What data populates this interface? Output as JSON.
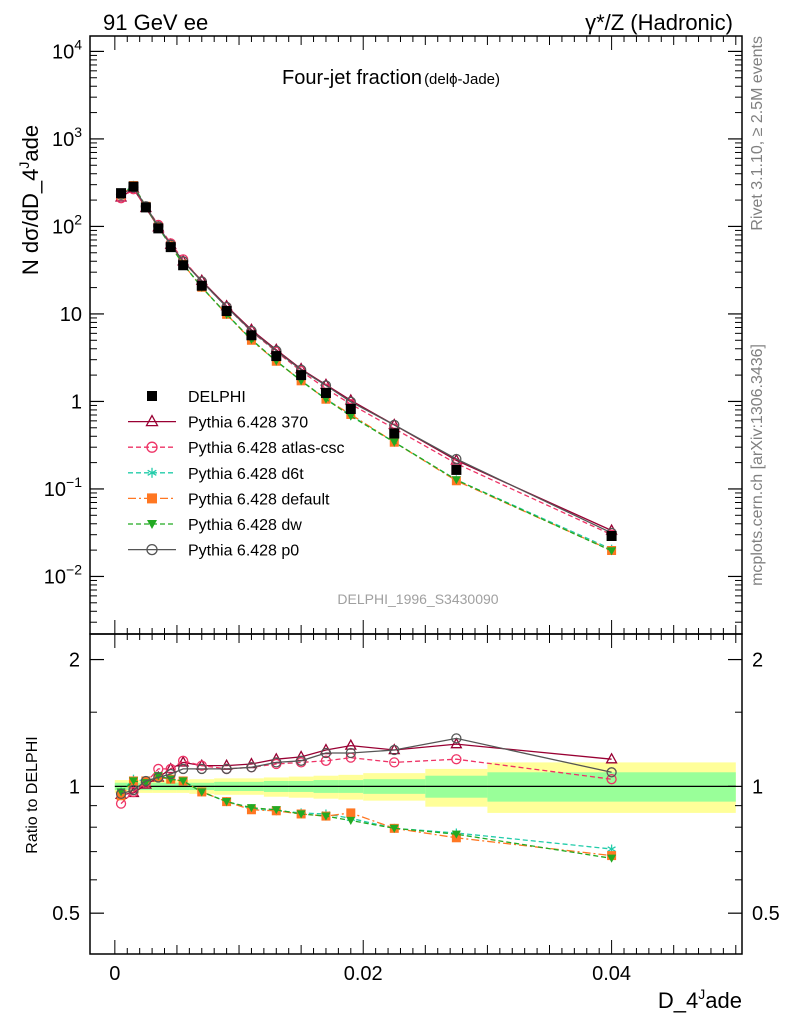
{
  "header": {
    "left": "91 GeV ee",
    "right": "γ*/Z (Hadronic)"
  },
  "side": {
    "version": "Rivet 3.1.10, ≥ 2.5M events",
    "source": "mcplots.cern.ch [arXiv:1306.3436]"
  },
  "chart_data": [
    {
      "type": "scatter",
      "title": "Four-jet fraction",
      "subtitle": "(delϕ-Jade)",
      "watermark": "DELPHI_1996_S3430090",
      "ylabel_main": "N dσ/dD_4",
      "ylabel_sup": "J",
      "ylabel_tail": "ade",
      "xlabel_main": "D_4",
      "xlabel_sup": "J",
      "xlabel_tail": "ade",
      "xlim": [
        -0.002,
        0.0505
      ],
      "ylim": [
        0.0022,
        15000
      ],
      "yscale": "log",
      "y_ticks": [
        {
          "v": 0.01,
          "base": "10",
          "exp": "−2"
        },
        {
          "v": 0.1,
          "base": "10",
          "exp": "−1"
        },
        {
          "v": 1,
          "base": "1",
          "exp": ""
        },
        {
          "v": 10,
          "base": "10",
          "exp": ""
        },
        {
          "v": 100,
          "base": "10",
          "exp": "2"
        },
        {
          "v": 1000,
          "base": "10",
          "exp": "3"
        },
        {
          "v": 10000,
          "base": "10",
          "exp": "4"
        }
      ],
      "legend_position": "left-middle",
      "data": {
        "name": "DELPHI",
        "color": "#000000",
        "x": [
          0.0005,
          0.0015,
          0.0025,
          0.0035,
          0.0045,
          0.0055,
          0.007,
          0.009,
          0.011,
          0.013,
          0.015,
          0.017,
          0.019,
          0.0225,
          0.0275,
          0.04
        ],
        "y": [
          240,
          285,
          165,
          95,
          58,
          36,
          21,
          10.8,
          5.7,
          3.3,
          2.0,
          1.25,
          0.82,
          0.43,
          0.165,
          0.029
        ]
      },
      "series": [
        {
          "name": "Pythia 6.428 370",
          "color": "#990033",
          "marker": "open-triangle",
          "dash": "",
          "y": [
            215,
            270,
            163,
            98,
            62,
            40,
            24,
            12.3,
            6.6,
            3.9,
            2.35,
            1.55,
            1.03,
            0.54,
            0.212,
            0.0335
          ]
        },
        {
          "name": "Pythia 6.428 atlas-csc",
          "color": "#ee3366",
          "marker": "open-circle",
          "dash": "5,3",
          "y": [
            210,
            266,
            168,
            104,
            64,
            42,
            23.5,
            12.0,
            6.3,
            3.7,
            2.22,
            1.4,
            0.93,
            0.49,
            0.195,
            0.03
          ]
        },
        {
          "name": "Pythia 6.428 d6t",
          "color": "#22ccaa",
          "marker": "asterisk",
          "dash": "5,3",
          "y": [
            232,
            295,
            170,
            98,
            60,
            37,
            20.2,
            9.9,
            5.08,
            2.88,
            1.73,
            1.07,
            0.69,
            0.342,
            0.127,
            0.0205
          ]
        },
        {
          "name": "Pythia 6.428 default",
          "color": "#ff7722",
          "marker": "filled-square",
          "dash": "8,3,2,3",
          "y": [
            228,
            293,
            170,
            98,
            60,
            37,
            20.2,
            9.9,
            5.0,
            2.88,
            1.72,
            1.06,
            0.71,
            0.342,
            0.124,
            0.0198
          ]
        },
        {
          "name": "Pythia 6.428 dw",
          "color": "#22aa22",
          "marker": "filled-triangle-down",
          "dash": "5,3",
          "y": [
            232,
            293,
            168,
            97,
            60,
            37,
            20.2,
            9.9,
            5.1,
            2.9,
            1.72,
            1.06,
            0.68,
            0.342,
            0.127,
            0.0196
          ]
        },
        {
          "name": "Pythia 6.428 p0",
          "color": "#555555",
          "marker": "open-circle",
          "dash": "",
          "y": [
            230,
            280,
            170,
            100,
            62,
            40,
            23.5,
            12.0,
            6.4,
            3.8,
            2.3,
            1.52,
            0.99,
            0.54,
            0.22,
            0.0315
          ]
        }
      ]
    },
    {
      "type": "scatter",
      "ylabel": "Ratio to DELPHI",
      "yscale": "log",
      "xlim": [
        -0.002,
        0.0505
      ],
      "ylim": [
        0.4,
        2.3
      ],
      "y_ticks": [
        {
          "v": 0.5,
          "label": "0.5"
        },
        {
          "v": 1,
          "label": "1"
        },
        {
          "v": 2,
          "label": "2"
        }
      ],
      "x_ticks": [
        {
          "v": 0,
          "label": "0"
        },
        {
          "v": 0.02,
          "label": "0.02"
        },
        {
          "v": 0.04,
          "label": "0.04"
        }
      ],
      "bands": [
        {
          "x0": 0.0,
          "x1": 0.001,
          "y2lo": 0.965,
          "y2hi": 1.035,
          "y1lo": 0.98,
          "y1hi": 1.02
        },
        {
          "x0": 0.001,
          "x1": 0.002,
          "y2lo": 0.965,
          "y2hi": 1.035,
          "y1lo": 0.98,
          "y1hi": 1.02
        },
        {
          "x0": 0.002,
          "x1": 0.003,
          "y2lo": 0.965,
          "y2hi": 1.035,
          "y1lo": 0.98,
          "y1hi": 1.02
        },
        {
          "x0": 0.003,
          "x1": 0.004,
          "y2lo": 0.965,
          "y2hi": 1.035,
          "y1lo": 0.98,
          "y1hi": 1.02
        },
        {
          "x0": 0.004,
          "x1": 0.005,
          "y2lo": 0.965,
          "y2hi": 1.035,
          "y1lo": 0.98,
          "y1hi": 1.02
        },
        {
          "x0": 0.005,
          "x1": 0.006,
          "y2lo": 0.965,
          "y2hi": 1.035,
          "y1lo": 0.98,
          "y1hi": 1.02
        },
        {
          "x0": 0.006,
          "x1": 0.008,
          "y2lo": 0.96,
          "y2hi": 1.04,
          "y1lo": 0.98,
          "y1hi": 1.02
        },
        {
          "x0": 0.008,
          "x1": 0.01,
          "y2lo": 0.955,
          "y2hi": 1.045,
          "y1lo": 0.975,
          "y1hi": 1.025
        },
        {
          "x0": 0.01,
          "x1": 0.012,
          "y2lo": 0.955,
          "y2hi": 1.045,
          "y1lo": 0.975,
          "y1hi": 1.025
        },
        {
          "x0": 0.012,
          "x1": 0.014,
          "y2lo": 0.945,
          "y2hi": 1.05,
          "y1lo": 0.97,
          "y1hi": 1.03
        },
        {
          "x0": 0.014,
          "x1": 0.016,
          "y2lo": 0.94,
          "y2hi": 1.055,
          "y1lo": 0.97,
          "y1hi": 1.03
        },
        {
          "x0": 0.016,
          "x1": 0.018,
          "y2lo": 0.935,
          "y2hi": 1.06,
          "y1lo": 0.965,
          "y1hi": 1.035
        },
        {
          "x0": 0.018,
          "x1": 0.02,
          "y2lo": 0.93,
          "y2hi": 1.065,
          "y1lo": 0.965,
          "y1hi": 1.035
        },
        {
          "x0": 0.02,
          "x1": 0.025,
          "y2lo": 0.925,
          "y2hi": 1.075,
          "y1lo": 0.96,
          "y1hi": 1.04
        },
        {
          "x0": 0.025,
          "x1": 0.03,
          "y2lo": 0.895,
          "y2hi": 1.1,
          "y1lo": 0.94,
          "y1hi": 1.06
        },
        {
          "x0": 0.03,
          "x1": 0.05,
          "y2lo": 0.865,
          "y2hi": 1.14,
          "y1lo": 0.92,
          "y1hi": 1.08
        }
      ],
      "series": [
        {
          "name": "Pythia 6.428 370",
          "y": [
            0.955,
            0.965,
            1.01,
            1.05,
            1.1,
            1.14,
            1.12,
            1.12,
            1.13,
            1.16,
            1.175,
            1.22,
            1.25,
            1.22,
            1.26,
            1.16
          ]
        },
        {
          "name": "Pythia 6.428 atlas-csc",
          "y": [
            0.91,
            0.97,
            1.02,
            1.1,
            1.1,
            1.15,
            1.12,
            1.1,
            1.11,
            1.13,
            1.14,
            1.15,
            1.17,
            1.14,
            1.16,
            1.04
          ]
        },
        {
          "name": "Pythia 6.428 d6t",
          "y": [
            0.97,
            1.04,
            1.03,
            1.05,
            1.04,
            1.03,
            0.97,
            0.92,
            0.885,
            0.875,
            0.865,
            0.86,
            0.84,
            0.795,
            0.775,
            0.71
          ]
        },
        {
          "name": "Pythia 6.428 default",
          "y": [
            0.95,
            1.03,
            1.03,
            1.05,
            1.04,
            1.03,
            0.97,
            0.92,
            0.88,
            0.875,
            0.86,
            0.85,
            0.865,
            0.795,
            0.755,
            0.685
          ]
        },
        {
          "name": "Pythia 6.428 dw",
          "y": [
            0.97,
            1.03,
            1.02,
            1.06,
            1.04,
            1.03,
            0.97,
            0.92,
            0.89,
            0.88,
            0.86,
            0.85,
            0.83,
            0.795,
            0.77,
            0.675
          ]
        },
        {
          "name": "Pythia 6.428 p0",
          "y": [
            0.96,
            0.98,
            1.03,
            1.05,
            1.07,
            1.1,
            1.1,
            1.1,
            1.11,
            1.14,
            1.15,
            1.2,
            1.2,
            1.22,
            1.3,
            1.08
          ]
        }
      ]
    }
  ]
}
